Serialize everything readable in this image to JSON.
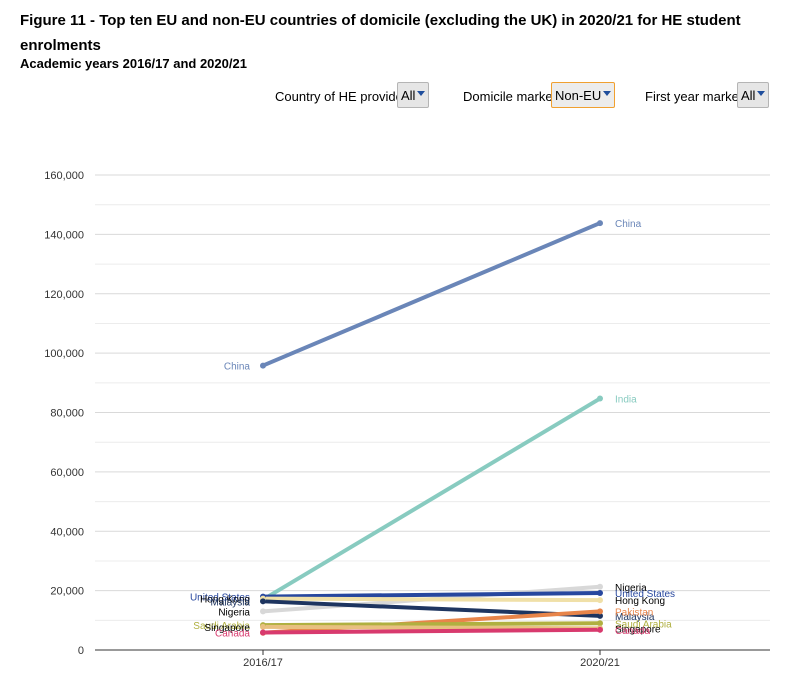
{
  "title": "Figure 11 - Top ten EU and non-EU countries of domicile (excluding the UK) in 2020/21 for HE student enrolments",
  "subtitle": "Academic years 2016/17 and 2020/21",
  "filters": [
    {
      "label": "Country of HE provider",
      "value": "All"
    },
    {
      "label": "Domicile marker",
      "value": "Non-EU"
    },
    {
      "label": "First year marker",
      "value": "All"
    }
  ],
  "chart_data": {
    "type": "line",
    "categories": [
      "2016/17",
      "2020/21"
    ],
    "ylim": [
      0,
      160000
    ],
    "yticks": [
      0,
      20000,
      40000,
      60000,
      80000,
      100000,
      120000,
      140000,
      160000
    ],
    "ytick_labels": [
      "0",
      "20,000",
      "40,000",
      "60,000",
      "80,000",
      "100,000",
      "120,000",
      "140,000",
      "160,000"
    ],
    "grid": true,
    "series": [
      {
        "name": "China",
        "values": [
          95800,
          143800
        ],
        "color": "#6a86b8",
        "label_left": "China",
        "label_right": "China",
        "label_color": "#6a86b8"
      },
      {
        "name": "India",
        "values": [
          17000,
          84700
        ],
        "color": "#88cbc0",
        "label_left": "",
        "label_right": "India",
        "label_color": "#88cbc0"
      },
      {
        "name": "Nigeria",
        "values": [
          13000,
          21300
        ],
        "color": "#d8d8d8",
        "label_left": "Nigeria",
        "label_right": "Nigeria",
        "label_color": "#000000"
      },
      {
        "name": "United States",
        "values": [
          18000,
          19200
        ],
        "color": "#27479e",
        "label_left": "United States",
        "label_right": "United States",
        "label_color": "#27479e"
      },
      {
        "name": "Hong Kong",
        "values": [
          17300,
          16800
        ],
        "color": "#f0e0a8",
        "label_left": "Hong Kong",
        "label_right": "Hong Kong",
        "label_color": "#000000"
      },
      {
        "name": "Malaysia",
        "values": [
          16400,
          11500
        ],
        "color": "#1e3560",
        "label_left": "Malaysia",
        "label_right": "Malaysia",
        "label_color": "#1e3560"
      },
      {
        "name": "Pakistan",
        "values": [
          5800,
          13000
        ],
        "color": "#e8854a",
        "label_left": "",
        "label_right": "Pakistan",
        "label_color": "#e8854a"
      },
      {
        "name": "Saudi Arabia",
        "values": [
          8400,
          9000
        ],
        "color": "#b0b040",
        "label_left": "Saudi Arabia",
        "label_right": "Saudi Arabia",
        "label_color": "#b0b040"
      },
      {
        "name": "Singapore",
        "values": [
          7800,
          7300
        ],
        "color": "#e8c080",
        "label_left": "Singapore",
        "label_right": "Singapore",
        "label_color": "#000000"
      },
      {
        "name": "Canada",
        "values": [
          5900,
          6800
        ],
        "color": "#d83a6e",
        "label_left": "Canada",
        "label_right": "Canada",
        "label_color": "#d83a6e"
      }
    ]
  }
}
